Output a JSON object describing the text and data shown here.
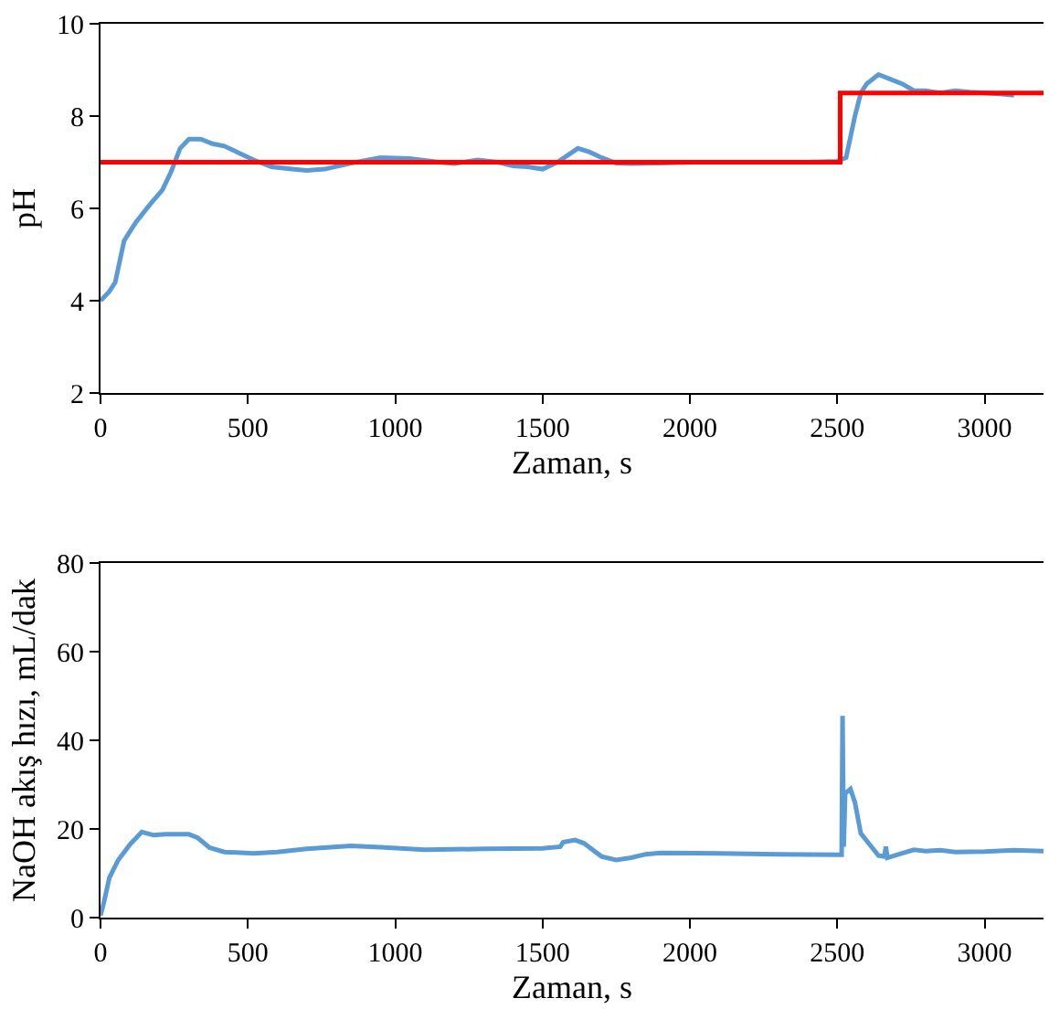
{
  "chart_data": [
    {
      "type": "line",
      "xlabel": "Zaman, s",
      "ylabel": "pH",
      "xlim": [
        0,
        3200
      ],
      "xticks": [
        0,
        500,
        1000,
        1500,
        2000,
        2500,
        3000
      ],
      "ylim": [
        2,
        10
      ],
      "yticks": [
        2,
        4,
        6,
        8,
        10
      ],
      "series": [
        {
          "color": "#5b9bd5",
          "x": [
            0,
            30,
            50,
            80,
            120,
            170,
            210,
            240,
            270,
            300,
            340,
            380,
            420,
            470,
            520,
            580,
            650,
            700,
            760,
            850,
            950,
            1050,
            1150,
            1200,
            1280,
            1350,
            1400,
            1450,
            1500,
            1550,
            1620,
            1660,
            1700,
            1750,
            1800,
            1900,
            2000,
            2200,
            2400,
            2500,
            2530,
            2560,
            2580,
            2600,
            2640,
            2680,
            2720,
            2760,
            2800,
            2850,
            2900,
            2950,
            3050,
            3100
          ],
          "values": [
            4.0,
            4.2,
            4.4,
            5.3,
            5.7,
            6.1,
            6.4,
            6.8,
            7.3,
            7.5,
            7.5,
            7.4,
            7.35,
            7.2,
            7.05,
            6.9,
            6.85,
            6.82,
            6.85,
            6.98,
            7.1,
            7.08,
            7.0,
            6.97,
            7.05,
            7.0,
            6.92,
            6.9,
            6.85,
            7.0,
            7.3,
            7.22,
            7.1,
            6.98,
            6.97,
            6.98,
            7.0,
            7.0,
            7.0,
            7.02,
            7.1,
            8.0,
            8.5,
            8.7,
            8.9,
            8.8,
            8.7,
            8.55,
            8.55,
            8.5,
            8.55,
            8.52,
            8.48,
            8.45
          ]
        },
        {
          "color": "#ff0000",
          "x": [
            0,
            2510,
            2510,
            3200
          ],
          "values": [
            7,
            7,
            8.5,
            8.5
          ]
        }
      ]
    },
    {
      "type": "line",
      "xlabel": "Zaman, s",
      "ylabel": "NaOH akış hızı, mL/dak",
      "xlim": [
        0,
        3200
      ],
      "xticks": [
        0,
        500,
        1000,
        1500,
        2000,
        2500,
        3000
      ],
      "ylim": [
        0,
        80
      ],
      "yticks": [
        0,
        20,
        40,
        60,
        80
      ],
      "series": [
        {
          "color": "#5b9bd5",
          "x": [
            0,
            10,
            30,
            60,
            100,
            140,
            180,
            220,
            300,
            330,
            370,
            420,
            520,
            600,
            700,
            850,
            950,
            1100,
            1300,
            1500,
            1560,
            1570,
            1610,
            1640,
            1700,
            1750,
            1800,
            1850,
            1900,
            2100,
            2300,
            2500,
            2515,
            2518,
            2522,
            2527,
            2545,
            2560,
            2580,
            2610,
            2640,
            2660,
            2665,
            2670,
            2720,
            2760,
            2800,
            2850,
            2900,
            3000,
            3100,
            3200
          ],
          "values": [
            0.5,
            3,
            9,
            13,
            16.5,
            19.3,
            18.6,
            18.8,
            18.8,
            18,
            15.8,
            14.8,
            14.5,
            14.8,
            15.5,
            16.2,
            15.9,
            15.3,
            15.5,
            15.6,
            16,
            17,
            17.5,
            16.8,
            13.8,
            13,
            13.5,
            14.3,
            14.6,
            14.5,
            14.3,
            14.2,
            14.2,
            45.5,
            16,
            28,
            29,
            26,
            19,
            16.5,
            14,
            13.8,
            16,
            13.5,
            14.5,
            15.3,
            15,
            15.2,
            14.8,
            14.9,
            15.2,
            15
          ]
        }
      ]
    }
  ]
}
